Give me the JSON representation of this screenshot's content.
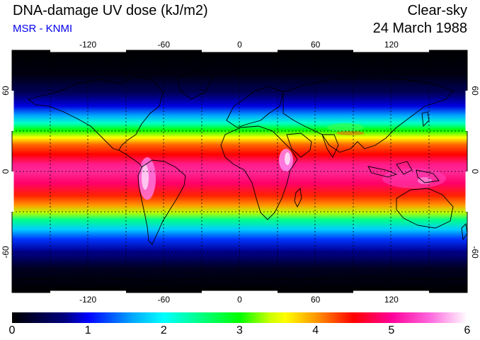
{
  "header": {
    "title": "DNA-damage UV dose (kJ/m2)",
    "credit": "MSR - KNMI",
    "condition": "Clear-sky",
    "date": "24 March 1988"
  },
  "colors": {
    "title": "#000000",
    "credit": "#0000ee",
    "map_background": "#000000",
    "coastline": "#000000",
    "gridline": "#000000"
  },
  "map": {
    "projection": "equirectangular",
    "lon_range": [
      -180,
      180
    ],
    "lat_range": [
      -90,
      90
    ],
    "lon_ticks": [
      {
        "value": -120,
        "label": "-120"
      },
      {
        "value": -60,
        "label": "-60"
      },
      {
        "value": 0,
        "label": "0"
      },
      {
        "value": 60,
        "label": "60"
      },
      {
        "value": 120,
        "label": "120"
      }
    ],
    "lat_ticks": [
      {
        "value": 60,
        "label": "60"
      },
      {
        "value": 0,
        "label": "0"
      },
      {
        "value": -60,
        "label": "-60"
      }
    ],
    "gridlines": "dotted, every 30 degrees"
  },
  "colorbar": {
    "min": 0,
    "max": 6,
    "tick_labels": [
      "0",
      "1",
      "2",
      "3",
      "4",
      "5",
      "6"
    ],
    "stops": [
      {
        "value": 0.0,
        "color": "#000000"
      },
      {
        "value": 0.7,
        "color": "#000080"
      },
      {
        "value": 1.0,
        "color": "#0000ff"
      },
      {
        "value": 1.6,
        "color": "#00aaff"
      },
      {
        "value": 2.0,
        "color": "#00ffff"
      },
      {
        "value": 2.5,
        "color": "#00ff80"
      },
      {
        "value": 3.0,
        "color": "#00ff00"
      },
      {
        "value": 3.4,
        "color": "#ccff00"
      },
      {
        "value": 3.6,
        "color": "#ffff00"
      },
      {
        "value": 4.0,
        "color": "#ff9900"
      },
      {
        "value": 4.5,
        "color": "#ff0000"
      },
      {
        "value": 5.0,
        "color": "#ff0099"
      },
      {
        "value": 5.5,
        "color": "#ff66dd"
      },
      {
        "value": 6.0,
        "color": "#ffffff"
      }
    ]
  }
}
